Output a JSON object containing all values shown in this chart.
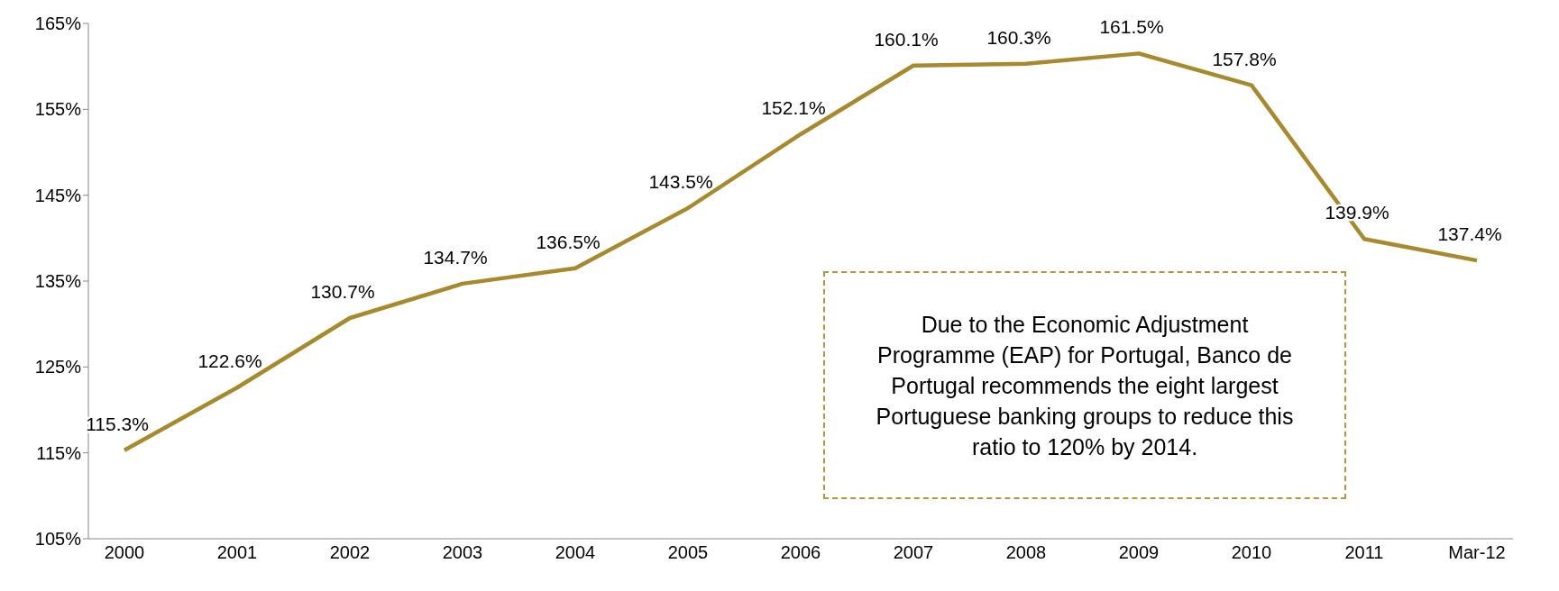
{
  "chart_data": {
    "type": "line",
    "categories": [
      "2000",
      "2001",
      "2002",
      "2003",
      "2004",
      "2005",
      "2006",
      "2007",
      "2008",
      "2009",
      "2010",
      "2011",
      "Mar-12"
    ],
    "series": [
      {
        "color": "#a88a2e",
        "values": [
          115.3,
          122.6,
          130.7,
          134.7,
          136.5,
          143.5,
          152.1,
          160.1,
          160.3,
          161.5,
          157.8,
          139.9,
          137.4
        ],
        "value_labels": [
          "115.3%",
          "122.6%",
          "130.7%",
          "134.7%",
          "136.5%",
          "143.5%",
          "152.1%",
          "160.1%",
          "160.3%",
          "161.5%",
          "157.8%",
          "139.9%",
          "137.4%"
        ]
      }
    ],
    "ylim": [
      105,
      165
    ],
    "yticks": [
      {
        "value": 105,
        "label": "105%"
      },
      {
        "value": 115,
        "label": "115%"
      },
      {
        "value": 125,
        "label": "125%"
      },
      {
        "value": 135,
        "label": "135%"
      },
      {
        "value": 145,
        "label": "145%"
      },
      {
        "value": 155,
        "label": "155%"
      },
      {
        "value": 165,
        "label": "165%"
      }
    ],
    "grid": false,
    "legend": false,
    "marker": "none",
    "line_style": "solid",
    "annotations": [
      "Due to the Economic Adjustment Programme (EAP) for Portugal, Banco de Portugal recommends the eight largest Portuguese banking groups to reduce this ratio to 120% by 2014."
    ]
  }
}
